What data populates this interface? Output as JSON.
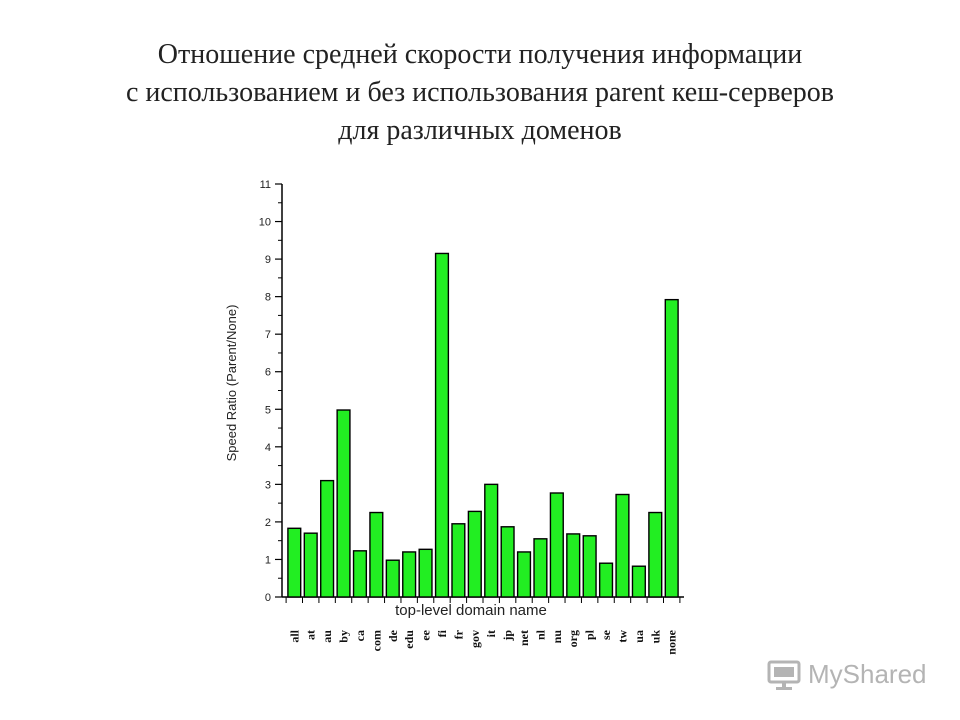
{
  "slide": {
    "title_lines": [
      "Отношение средней скорости получения информации",
      "с использованием и без использования parent кеш-серверов",
      "для различных доменов"
    ]
  },
  "chart_data": {
    "type": "bar",
    "title": "",
    "xlabel": "top-level domain name",
    "ylabel": "Speed Ratio (Parent/None)",
    "ylim": [
      0,
      11
    ],
    "yticks": [
      "0",
      "1",
      "2",
      "3",
      "4",
      "5",
      "6",
      "7",
      "8",
      "9",
      "10",
      "11"
    ],
    "grid": false,
    "bar_color": "#22ee22",
    "categories": [
      "all",
      "at",
      "au",
      "by",
      "ca",
      "com",
      "de",
      "edu",
      "ee",
      "fi",
      "fr",
      "gov",
      "it",
      "jp",
      "net",
      "nl",
      "nu",
      "org",
      "pl",
      "se",
      "tw",
      "ua",
      "uk",
      "none"
    ],
    "values": [
      1.83,
      1.7,
      3.1,
      4.98,
      1.23,
      2.25,
      0.98,
      1.2,
      1.27,
      9.15,
      1.95,
      2.28,
      3.0,
      1.87,
      1.2,
      1.55,
      2.77,
      1.68,
      1.63,
      0.9,
      2.73,
      0.82,
      2.25,
      7.92
    ]
  },
  "watermark": {
    "text": "MyShared",
    "icon": "projector-screen-icon"
  }
}
